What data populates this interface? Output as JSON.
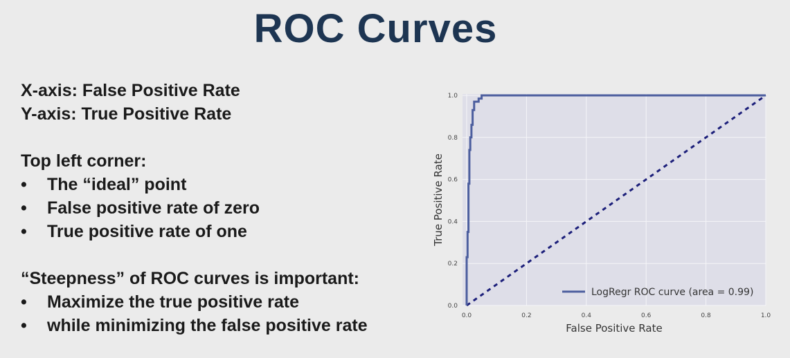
{
  "slide": {
    "title": "ROC Curves",
    "axis_lines": [
      "X-axis:  False Positive Rate",
      "Y-axis:  True Positive Rate"
    ],
    "corner_heading": "Top left corner:",
    "corner_bullets": [
      "The “ideal” point",
      "False positive rate of zero",
      "True positive rate of one"
    ],
    "steep_heading": "“Steepness” of ROC curves is important:",
    "steep_bullets": [
      "Maximize the true positive rate",
      "while minimizing the false positive rate"
    ],
    "bullet_char": "•"
  },
  "chart_data": {
    "type": "line",
    "xlabel": "False Positive Rate",
    "ylabel": "True Positive Rate",
    "xlim": [
      0,
      1
    ],
    "ylim": [
      0,
      1
    ],
    "xticks": [
      "0.0",
      "0.2",
      "0.4",
      "0.6",
      "0.8",
      "1.0"
    ],
    "yticks": [
      "0.0",
      "0.2",
      "0.4",
      "0.6",
      "0.8",
      "1.0"
    ],
    "grid": true,
    "legend_position": "lower-right",
    "colors": {
      "curve": "#4c5e9e",
      "diagonal": "#1c1f7a",
      "plot_bg": "#dedee8",
      "grid": "#f5f5f8"
    },
    "series": [
      {
        "name": "LogRegr ROC curve (area = 0.99)",
        "x": [
          0,
          0,
          0.003,
          0.003,
          0.006,
          0.006,
          0.009,
          0.009,
          0.012,
          0.012,
          0.016,
          0.016,
          0.02,
          0.02,
          0.025,
          0.025,
          0.04,
          0.04,
          0.05,
          0.05,
          1.0
        ],
        "y": [
          0,
          0.23,
          0.23,
          0.35,
          0.35,
          0.58,
          0.58,
          0.74,
          0.74,
          0.8,
          0.8,
          0.86,
          0.86,
          0.93,
          0.93,
          0.97,
          0.97,
          0.985,
          0.985,
          1.0,
          1.0
        ]
      },
      {
        "name": "",
        "style": "dashed",
        "x": [
          0,
          1
        ],
        "y": [
          0,
          1
        ]
      }
    ]
  }
}
